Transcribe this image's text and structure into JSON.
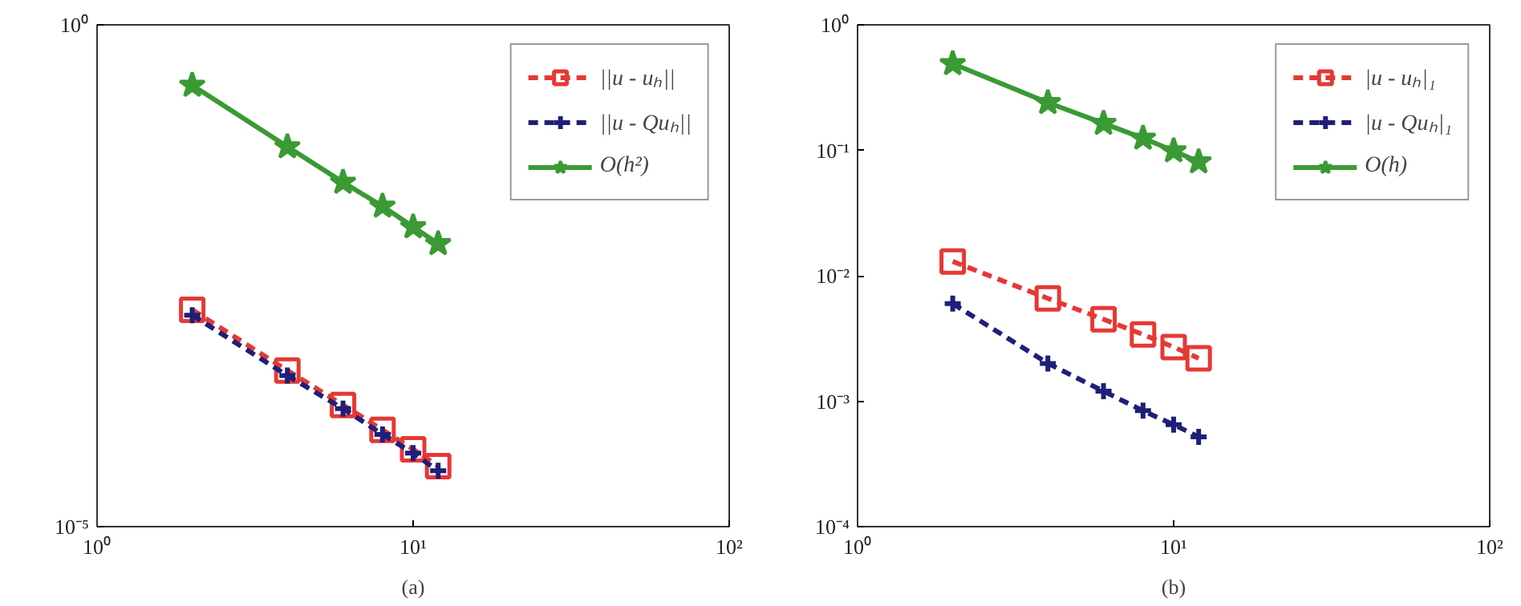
{
  "chart_data": [
    {
      "type": "line",
      "annotations": [
        "(a)"
      ],
      "log": "xy",
      "xlim": [
        1,
        100
      ],
      "ylim": [
        1e-05,
        1
      ],
      "xticks": [
        {
          "value": 1,
          "label": "10⁰"
        },
        {
          "value": 10,
          "label": "10¹"
        },
        {
          "value": 100,
          "label": "10²"
        }
      ],
      "yticks": [
        {
          "value": 1,
          "label": "10⁰"
        },
        {
          "value": 1e-05,
          "label": "10⁻⁵"
        }
      ],
      "grid": false,
      "legend": "top right",
      "x": [
        2,
        4,
        6,
        8,
        10,
        12
      ],
      "series": [
        {
          "name": "||u - uₕ||",
          "color": "#e53935",
          "marker": "square",
          "line_style": "dashed",
          "values": [
            0.00145,
            0.00036,
            0.000163,
            9.2e-05,
            5.9e-05,
            4e-05
          ]
        },
        {
          "name": "||u - Quₕ||",
          "color": "#1f1f7a",
          "marker": "cross",
          "line_style": "dashed",
          "values": [
            0.00128,
            0.00032,
            0.00015,
            8.3e-05,
            5.4e-05,
            3.6e-05
          ]
        },
        {
          "name": "O(h²)",
          "color": "#3a9a34",
          "marker": "star",
          "line_style": "solid",
          "values": [
            0.25,
            0.061,
            0.027,
            0.0156,
            0.0097,
            0.0066
          ]
        }
      ]
    },
    {
      "type": "line",
      "annotations": [
        "(b)"
      ],
      "log": "xy",
      "xlim": [
        1,
        100
      ],
      "ylim": [
        0.0001,
        1
      ],
      "xticks": [
        {
          "value": 1,
          "label": "10⁰"
        },
        {
          "value": 10,
          "label": "10¹"
        },
        {
          "value": 100,
          "label": "10²"
        }
      ],
      "yticks": [
        {
          "value": 1,
          "label": "10⁰"
        },
        {
          "value": 0.1,
          "label": "10⁻¹"
        },
        {
          "value": 0.01,
          "label": "10⁻²"
        },
        {
          "value": 0.001,
          "label": "10⁻³"
        },
        {
          "value": 0.0001,
          "label": "10⁻⁴"
        }
      ],
      "grid": false,
      "legend": "top right",
      "x": [
        2,
        4,
        6,
        8,
        10,
        12
      ],
      "series": [
        {
          "name": "|u - uₕ|₁",
          "color": "#e53935",
          "marker": "square",
          "line_style": "dashed",
          "values": [
            0.013,
            0.0066,
            0.0045,
            0.0034,
            0.0027,
            0.0022
          ]
        },
        {
          "name": "|u - Quₕ|₁",
          "color": "#1f1f7a",
          "marker": "cross",
          "line_style": "dashed",
          "values": [
            0.006,
            0.002,
            0.0012,
            0.00084,
            0.00065,
            0.00052
          ]
        },
        {
          "name": "O(h)",
          "color": "#3a9a34",
          "marker": "star",
          "line_style": "solid",
          "values": [
            0.49,
            0.24,
            0.164,
            0.125,
            0.099,
            0.081
          ]
        }
      ]
    }
  ]
}
